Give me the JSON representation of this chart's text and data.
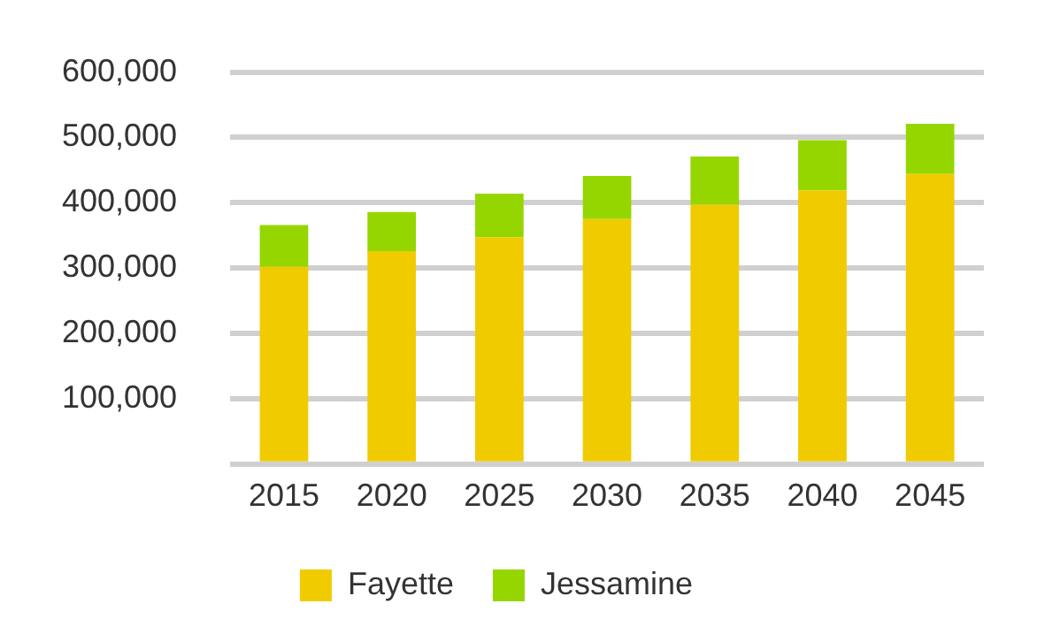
{
  "chart_data": {
    "type": "bar",
    "stacked": true,
    "categories": [
      "2015",
      "2020",
      "2025",
      "2030",
      "2035",
      "2040",
      "2045"
    ],
    "series": [
      {
        "name": "Fayette",
        "color": "#f0cb00",
        "values": [
          302000,
          326000,
          347000,
          375000,
          397000,
          419000,
          444000
        ]
      },
      {
        "name": "Jessamine",
        "color": "#96d600",
        "values": [
          64000,
          60000,
          67000,
          66000,
          74000,
          77000,
          77000
        ]
      }
    ],
    "ylim": [
      0,
      600000
    ],
    "yticks": [
      {
        "value": 0,
        "label": null
      },
      {
        "value": 100000,
        "label": "100,000"
      },
      {
        "value": 200000,
        "label": "200,000"
      },
      {
        "value": 300000,
        "label": "300,000"
      },
      {
        "value": 400000,
        "label": "400,000"
      },
      {
        "value": 500000,
        "label": "500,000"
      },
      {
        "value": 600000,
        "label": "600,000"
      }
    ],
    "grid": "y",
    "legend": "bottom"
  }
}
